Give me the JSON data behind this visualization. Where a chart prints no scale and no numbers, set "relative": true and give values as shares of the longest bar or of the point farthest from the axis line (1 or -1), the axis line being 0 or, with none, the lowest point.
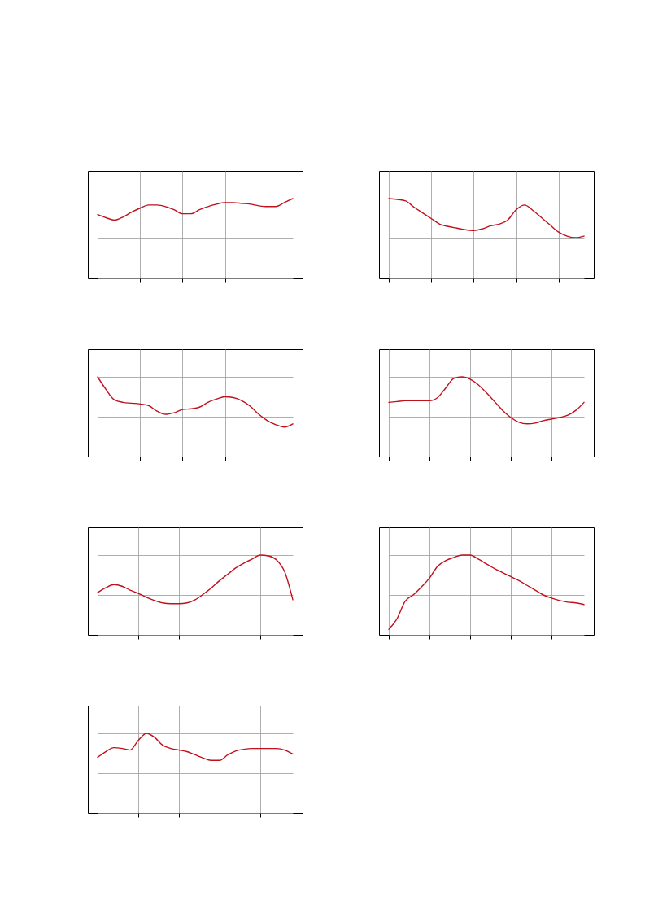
{
  "chart_data": [
    {
      "type": "line",
      "relative": true,
      "grid": true,
      "tick_labels": false,
      "color": "#c0101c",
      "categories": [
        null,
        null,
        null,
        null,
        null,
        null,
        null,
        null,
        null,
        null,
        null,
        null,
        null,
        null,
        null,
        null,
        null,
        null,
        null,
        null,
        null,
        null,
        null,
        null
      ],
      "values": [
        0.8,
        0.76,
        0.73,
        0.77,
        0.83,
        0.88,
        0.92,
        0.92,
        0.9,
        0.86,
        0.81,
        0.81,
        0.86,
        0.9,
        0.93,
        0.95,
        0.95,
        0.94,
        0.93,
        0.91,
        0.9,
        0.9,
        0.95,
        1.0
      ]
    },
    {
      "type": "line",
      "relative": true,
      "grid": true,
      "tick_labels": false,
      "color": "#c0101c",
      "categories": [
        null,
        null,
        null,
        null,
        null,
        null,
        null,
        null,
        null,
        null,
        null,
        null,
        null,
        null,
        null,
        null,
        null,
        null,
        null,
        null,
        null,
        null,
        null,
        null
      ],
      "values": [
        1.0,
        0.99,
        0.97,
        0.89,
        0.82,
        0.75,
        0.68,
        0.65,
        0.63,
        0.61,
        0.6,
        0.62,
        0.66,
        0.68,
        0.73,
        0.86,
        0.92,
        0.85,
        0.76,
        0.67,
        0.58,
        0.53,
        0.51,
        0.53
      ]
    },
    {
      "type": "line",
      "relative": true,
      "grid": true,
      "tick_labels": false,
      "color": "#c0101c",
      "categories": [
        null,
        null,
        null,
        null,
        null,
        null,
        null,
        null,
        null,
        null,
        null,
        null,
        null,
        null,
        null,
        null,
        null,
        null,
        null,
        null,
        null,
        null,
        null,
        null
      ],
      "values": [
        1.0,
        0.84,
        0.71,
        0.68,
        0.67,
        0.66,
        0.64,
        0.57,
        0.53,
        0.55,
        0.59,
        0.6,
        0.62,
        0.68,
        0.72,
        0.75,
        0.74,
        0.7,
        0.63,
        0.53,
        0.45,
        0.4,
        0.37,
        0.41
      ]
    },
    {
      "type": "line",
      "relative": true,
      "grid": true,
      "tick_labels": false,
      "color": "#c0101c",
      "categories": [
        null,
        null,
        null,
        null,
        null,
        null,
        null,
        null,
        null,
        null,
        null,
        null,
        null,
        null,
        null,
        null,
        null,
        null,
        null,
        null,
        null,
        null,
        null,
        null,
        null
      ],
      "values": [
        0.68,
        0.69,
        0.7,
        0.7,
        0.7,
        0.7,
        0.74,
        0.86,
        0.98,
        1.0,
        0.97,
        0.9,
        0.8,
        0.69,
        0.58,
        0.49,
        0.43,
        0.41,
        0.42,
        0.45,
        0.47,
        0.49,
        0.52,
        0.58,
        0.68
      ]
    },
    {
      "type": "line",
      "relative": true,
      "grid": true,
      "tick_labels": false,
      "color": "#c0101c",
      "categories": [
        null,
        null,
        null,
        null,
        null,
        null,
        null,
        null,
        null,
        null,
        null,
        null,
        null,
        null,
        null,
        null,
        null,
        null,
        null,
        null,
        null,
        null,
        null,
        null,
        null
      ],
      "values": [
        0.53,
        0.59,
        0.63,
        0.61,
        0.56,
        0.52,
        0.47,
        0.43,
        0.4,
        0.39,
        0.39,
        0.4,
        0.44,
        0.51,
        0.59,
        0.68,
        0.76,
        0.84,
        0.9,
        0.95,
        1.0,
        0.99,
        0.94,
        0.79,
        0.44
      ]
    },
    {
      "type": "line",
      "relative": true,
      "grid": true,
      "tick_labels": false,
      "color": "#c0101c",
      "categories": [
        null,
        null,
        null,
        null,
        null,
        null,
        null,
        null,
        null,
        null,
        null,
        null,
        null,
        null,
        null,
        null,
        null,
        null,
        null,
        null,
        null,
        null,
        null,
        null,
        null
      ],
      "values": [
        0.07,
        0.2,
        0.42,
        0.5,
        0.6,
        0.71,
        0.86,
        0.93,
        0.97,
        1.0,
        1.0,
        0.95,
        0.89,
        0.83,
        0.78,
        0.73,
        0.68,
        0.62,
        0.56,
        0.5,
        0.46,
        0.43,
        0.41,
        0.4,
        0.38
      ]
    },
    {
      "type": "line",
      "relative": true,
      "grid": true,
      "tick_labels": false,
      "color": "#c0101c",
      "categories": [
        null,
        null,
        null,
        null,
        null,
        null,
        null,
        null,
        null,
        null,
        null,
        null,
        null,
        null,
        null,
        null,
        null,
        null,
        null,
        null,
        null,
        null,
        null,
        null,
        null
      ],
      "values": [
        0.7,
        0.77,
        0.82,
        0.81,
        0.79,
        0.91,
        1.0,
        0.95,
        0.85,
        0.81,
        0.79,
        0.77,
        0.73,
        0.69,
        0.66,
        0.66,
        0.73,
        0.78,
        0.8,
        0.81,
        0.81,
        0.81,
        0.81,
        0.79,
        0.74
      ]
    }
  ]
}
